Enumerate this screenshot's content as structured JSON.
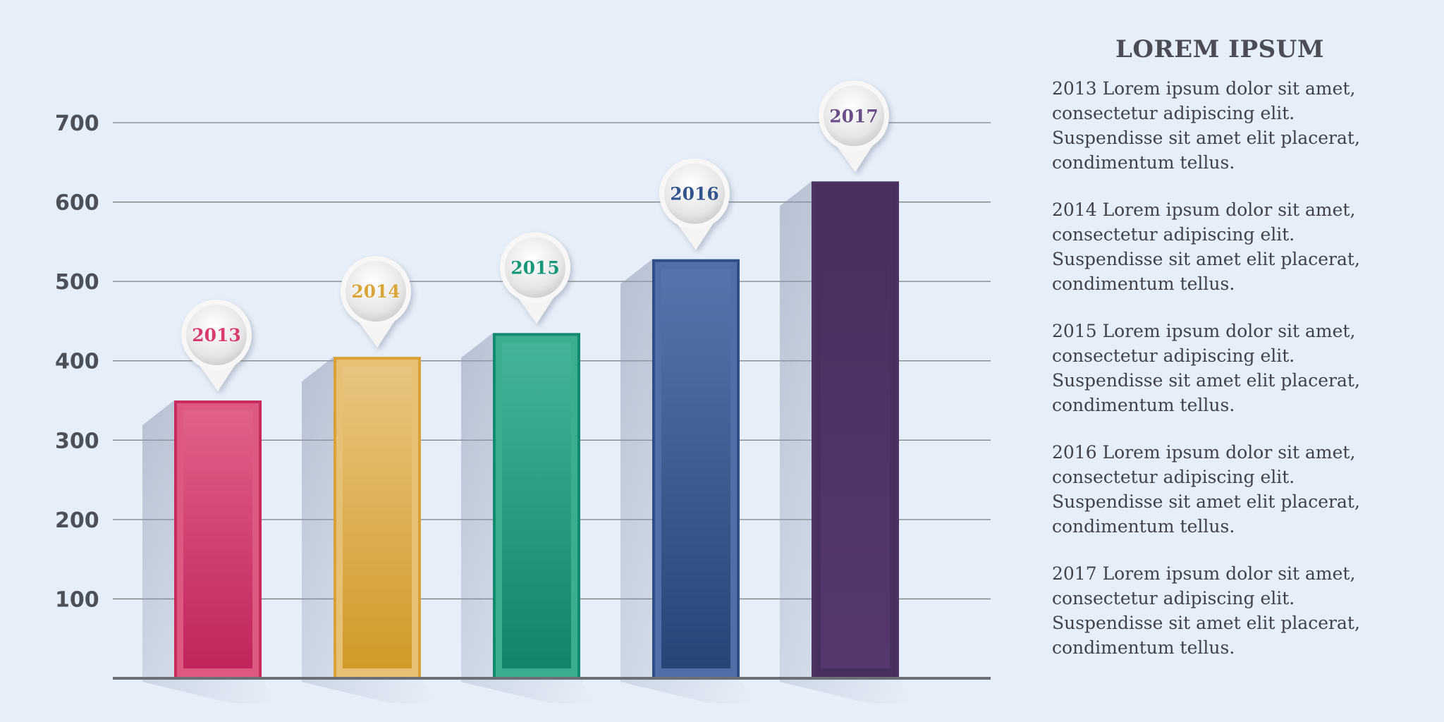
{
  "chart_data": {
    "type": "bar",
    "categories": [
      "2013",
      "2014",
      "2015",
      "2016",
      "2017"
    ],
    "values": [
      350,
      405,
      435,
      528,
      626
    ],
    "ylim": [
      0,
      700
    ],
    "yticks": [
      "100",
      "200",
      "300",
      "400",
      "500",
      "600",
      "700"
    ],
    "grid": true,
    "colors": {
      "2013": {
        "light": "#e06188",
        "dark": "#c1255a",
        "border": "#c72b5e",
        "text": "#d63c6c"
      },
      "2014": {
        "light": "#e8c57f",
        "dark": "#d19a28",
        "border": "#d9a138",
        "text": "#d8a53b"
      },
      "2015": {
        "light": "#43b499",
        "dark": "#10856a",
        "border": "#138a6f",
        "text": "#18967a"
      },
      "2016": {
        "light": "#5575ac",
        "dark": "#264678",
        "border": "#2f4e87",
        "text": "#34548c"
      },
      "2017": {
        "light": "#472f5f",
        "dark": "#55396e",
        "border": "#4a3360",
        "text": "#6a4e86"
      }
    }
  },
  "sidebar": {
    "title": "LOREM IPSUM",
    "entries": [
      {
        "year": "2013",
        "text": "Lorem ipsum dolor sit amet, consectetur adipiscing elit. Suspendisse sit amet elit placerat, condimentum tellus."
      },
      {
        "year": "2014",
        "text": "Lorem ipsum dolor sit amet, consectetur adipiscing elit. Suspendisse sit amet elit placerat, condimentum tellus."
      },
      {
        "year": "2015",
        "text": "Lorem ipsum dolor sit amet, consectetur adipiscing elit. Suspendisse sit amet elit placerat, condimentum tellus."
      },
      {
        "year": "2016",
        "text": "Lorem ipsum dolor sit amet, consectetur adipiscing elit. Suspendisse sit amet elit placerat, condimentum tellus."
      },
      {
        "year": "2017",
        "text": "Lorem ipsum dolor sit amet, consectetur adipiscing elit. Suspendisse sit amet elit placerat, condimentum tellus."
      }
    ]
  }
}
